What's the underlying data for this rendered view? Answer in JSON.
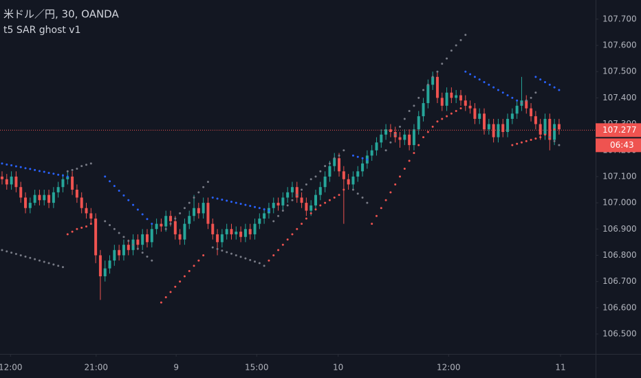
{
  "chart_data": {
    "type": "candlestick",
    "title": "米ドル／円, 30, OANDA",
    "subtitle": "t5 SAR ghost v1",
    "up_color": "#26a69a",
    "down_color": "#ef5350",
    "open": [
      107.1,
      107.09,
      107.07,
      107.1,
      107.06,
      107.02,
      106.98,
      107.0,
      107.03,
      107.01,
      107.03,
      107.0,
      107.04,
      107.06,
      107.09,
      107.1,
      107.05,
      107.02,
      106.98,
      106.96,
      106.94,
      106.8,
      106.72,
      106.75,
      106.78,
      106.82,
      106.8,
      106.84,
      106.82,
      106.86,
      106.84,
      106.88,
      106.85,
      106.9,
      106.92,
      106.91,
      106.95,
      106.93,
      106.88,
      106.86,
      106.92,
      106.95,
      106.98,
      106.96,
      107.0,
      106.92,
      106.88,
      106.85,
      106.88,
      106.9,
      106.88,
      106.89,
      106.87,
      106.9,
      106.88,
      106.92,
      106.94,
      106.96,
      106.98,
      107.0,
      106.99,
      107.02,
      107.04,
      107.06,
      107.02,
      107.0,
      106.97,
      106.99,
      107.03,
      107.06,
      107.1,
      107.14,
      107.17,
      107.12,
      107.09,
      107.07,
      107.1,
      107.12,
      107.15,
      107.18,
      107.2,
      107.23,
      107.26,
      107.28,
      107.27,
      107.25,
      107.24,
      107.26,
      107.22,
      107.28,
      107.33,
      107.38,
      107.45,
      107.48,
      107.4,
      107.37,
      107.42,
      107.4,
      107.41,
      107.39,
      107.37,
      107.36,
      107.32,
      107.34,
      107.28,
      107.3,
      107.25,
      107.3,
      107.27,
      107.32,
      107.34,
      107.37,
      107.39,
      107.36,
      107.33,
      107.3,
      107.26,
      107.32,
      107.24,
      107.3
    ],
    "high": [
      107.12,
      107.11,
      107.12,
      107.12,
      107.08,
      107.04,
      107.02,
      107.05,
      107.05,
      107.05,
      107.05,
      107.06,
      107.08,
      107.11,
      107.12,
      107.12,
      107.07,
      107.04,
      107.0,
      106.98,
      106.96,
      106.82,
      106.78,
      106.8,
      106.84,
      106.84,
      106.86,
      106.86,
      106.88,
      106.88,
      106.9,
      106.9,
      106.92,
      106.94,
      106.94,
      106.97,
      106.97,
      106.95,
      106.9,
      106.94,
      106.97,
      107.03,
      107.0,
      107.02,
      107.02,
      106.94,
      106.9,
      106.9,
      106.92,
      106.92,
      106.91,
      106.91,
      106.92,
      106.92,
      106.94,
      106.96,
      106.98,
      107.0,
      107.02,
      107.02,
      107.04,
      107.06,
      107.08,
      107.08,
      107.04,
      107.02,
      107.01,
      107.05,
      107.08,
      107.12,
      107.16,
      107.19,
      107.19,
      107.14,
      107.11,
      107.12,
      107.14,
      107.17,
      107.2,
      107.22,
      107.25,
      107.28,
      107.3,
      107.3,
      107.29,
      107.27,
      107.28,
      107.28,
      107.3,
      107.35,
      107.4,
      107.47,
      107.5,
      107.5,
      107.42,
      107.44,
      107.44,
      107.43,
      107.43,
      107.41,
      107.39,
      107.38,
      107.36,
      107.36,
      107.32,
      107.32,
      107.32,
      107.32,
      107.34,
      107.36,
      107.39,
      107.48,
      107.41,
      107.38,
      107.35,
      107.32,
      107.34,
      107.34,
      107.32,
      107.32
    ],
    "low": [
      107.07,
      107.05,
      107.05,
      107.04,
      107.0,
      106.96,
      106.96,
      106.99,
      106.99,
      106.99,
      106.98,
      106.98,
      107.02,
      107.04,
      107.07,
      107.03,
      107.0,
      106.96,
      106.94,
      106.92,
      106.77,
      106.63,
      106.7,
      106.73,
      106.76,
      106.78,
      106.78,
      106.8,
      106.8,
      106.82,
      106.82,
      106.83,
      106.83,
      106.88,
      106.89,
      106.89,
      106.91,
      106.86,
      106.84,
      106.84,
      106.9,
      106.93,
      106.94,
      106.94,
      106.9,
      106.86,
      106.8,
      106.83,
      106.86,
      106.86,
      106.86,
      106.85,
      106.85,
      106.86,
      106.86,
      106.9,
      106.92,
      106.94,
      106.96,
      106.97,
      106.97,
      107.0,
      107.02,
      107.0,
      106.98,
      106.95,
      106.95,
      106.97,
      107.01,
      107.04,
      107.08,
      107.12,
      107.1,
      106.92,
      107.05,
      107.05,
      107.08,
      107.1,
      107.13,
      107.16,
      107.18,
      107.21,
      107.24,
      107.25,
      107.23,
      107.21,
      107.22,
      107.2,
      107.2,
      107.26,
      107.31,
      107.36,
      107.43,
      107.38,
      107.35,
      107.35,
      107.38,
      107.38,
      107.37,
      107.35,
      107.34,
      107.3,
      107.3,
      107.26,
      107.26,
      107.23,
      107.23,
      107.25,
      107.25,
      107.3,
      107.32,
      107.35,
      107.34,
      107.31,
      107.28,
      107.24,
      107.24,
      107.2,
      107.22,
      107.26
    ],
    "close": [
      107.09,
      107.07,
      107.1,
      107.06,
      107.02,
      106.98,
      107.0,
      107.03,
      107.01,
      107.03,
      107.0,
      107.04,
      107.06,
      107.09,
      107.1,
      107.05,
      107.02,
      106.98,
      106.96,
      106.94,
      106.8,
      106.72,
      106.75,
      106.78,
      106.82,
      106.8,
      106.84,
      106.82,
      106.86,
      106.84,
      106.88,
      106.85,
      106.9,
      106.92,
      106.91,
      106.95,
      106.93,
      106.88,
      106.86,
      106.92,
      106.95,
      106.98,
      106.96,
      107.0,
      106.92,
      106.88,
      106.85,
      106.88,
      106.9,
      106.88,
      106.89,
      106.87,
      106.9,
      106.88,
      106.92,
      106.94,
      106.96,
      106.98,
      107.0,
      106.99,
      107.02,
      107.04,
      107.06,
      107.02,
      107.0,
      106.97,
      106.99,
      107.03,
      107.06,
      107.1,
      107.14,
      107.17,
      107.12,
      107.09,
      107.07,
      107.1,
      107.12,
      107.15,
      107.18,
      107.2,
      107.23,
      107.26,
      107.28,
      107.27,
      107.25,
      107.24,
      107.26,
      107.22,
      107.28,
      107.33,
      107.38,
      107.45,
      107.48,
      107.4,
      107.37,
      107.42,
      107.4,
      107.41,
      107.39,
      107.37,
      107.36,
      107.32,
      107.34,
      107.28,
      107.3,
      107.25,
      107.3,
      107.27,
      107.32,
      107.34,
      107.37,
      107.39,
      107.36,
      107.33,
      107.3,
      107.26,
      107.32,
      107.24,
      107.3,
      107.28
    ],
    "indicator_dots": [
      {
        "color": "#2962ff",
        "values": [
          107.15,
          107.146,
          107.143,
          107.139,
          107.136,
          107.132,
          107.129,
          107.125,
          107.121,
          107.118,
          107.114,
          107.111,
          107.107,
          107.104,
          107.1,
          null,
          null,
          null,
          null,
          null,
          null,
          null,
          107.1,
          107.082,
          107.064,
          107.046,
          107.028,
          107.01,
          106.992,
          106.974,
          106.956,
          106.938,
          106.92,
          null,
          null,
          null,
          null,
          null,
          null,
          null,
          null,
          null,
          null,
          null,
          null,
          107.02,
          107.016,
          107.012,
          107.008,
          107.004,
          107.0,
          106.996,
          106.992,
          106.988,
          106.984,
          106.98,
          106.975,
          106.97,
          null,
          null,
          null,
          null,
          null,
          null,
          null,
          null,
          null,
          null,
          null,
          null,
          null,
          null,
          null,
          null,
          null,
          107.18,
          107.175,
          107.17,
          107.165,
          null,
          null,
          null,
          null,
          null,
          null,
          null,
          null,
          null,
          null,
          null,
          null,
          null,
          null,
          null,
          null,
          null,
          null,
          null,
          null,
          107.5,
          107.49,
          107.48,
          107.47,
          107.46,
          107.45,
          107.44,
          107.43,
          107.42,
          107.41,
          107.4,
          107.39,
          107.38,
          null,
          null,
          107.48,
          107.47,
          107.46,
          107.45,
          107.44,
          107.43
        ]
      },
      {
        "color": "#ef5350",
        "values": [
          null,
          null,
          null,
          null,
          null,
          null,
          null,
          null,
          null,
          null,
          null,
          null,
          null,
          null,
          106.88,
          106.89,
          106.9,
          106.905,
          106.91,
          106.92,
          null,
          null,
          null,
          null,
          null,
          null,
          null,
          null,
          null,
          null,
          null,
          null,
          null,
          null,
          106.62,
          106.64,
          106.66,
          106.68,
          106.7,
          106.72,
          106.74,
          106.76,
          106.78,
          106.8,
          null,
          null,
          null,
          null,
          null,
          null,
          null,
          null,
          null,
          null,
          null,
          null,
          null,
          106.78,
          106.8,
          106.82,
          106.84,
          106.86,
          106.88,
          106.9,
          106.92,
          106.94,
          106.96,
          106.975,
          106.99,
          107.0,
          107.01,
          107.02,
          107.03,
          107.05,
          null,
          null,
          null,
          null,
          null,
          106.92,
          106.95,
          106.98,
          107.01,
          107.04,
          107.07,
          107.1,
          107.13,
          107.16,
          107.19,
          107.22,
          107.25,
          107.27,
          107.29,
          107.31,
          107.32,
          107.33,
          107.34,
          107.35,
          107.36,
          null,
          null,
          null,
          null,
          null,
          null,
          null,
          null,
          null,
          null,
          107.22,
          107.225,
          107.23,
          107.235,
          107.24,
          107.245,
          107.25,
          107.26,
          107.27,
          107.28,
          null
        ]
      },
      {
        "color": "#787b86",
        "values": [
          106.82,
          106.815,
          106.81,
          106.805,
          106.8,
          106.795,
          106.79,
          106.785,
          106.78,
          106.775,
          106.77,
          106.765,
          106.76,
          106.755,
          107.12,
          107.125,
          107.13,
          107.14,
          107.145,
          107.15,
          null,
          null,
          106.93,
          106.915,
          106.9,
          106.885,
          106.87,
          106.855,
          106.84,
          106.825,
          106.81,
          106.795,
          106.78,
          null,
          null,
          106.9,
          106.92,
          106.94,
          106.96,
          106.98,
          107.0,
          107.02,
          107.04,
          107.06,
          107.08,
          106.83,
          106.824,
          106.818,
          106.812,
          106.806,
          106.8,
          106.794,
          106.788,
          106.782,
          106.776,
          106.77,
          106.76,
          null,
          106.93,
          106.95,
          106.97,
          106.99,
          107.01,
          107.03,
          107.05,
          107.07,
          107.09,
          107.1,
          107.12,
          107.14,
          107.15,
          107.17,
          107.18,
          107.2,
          null,
          107.05,
          107.035,
          107.02,
          107.0,
          null,
          null,
          null,
          107.2,
          107.23,
          107.26,
          107.29,
          107.32,
          107.35,
          107.37,
          107.4,
          107.43,
          107.45,
          107.48,
          107.5,
          107.53,
          107.55,
          107.58,
          107.6,
          107.62,
          107.64,
          null,
          null,
          null,
          null,
          null,
          null,
          null,
          null,
          null,
          null,
          null,
          107.38,
          107.39,
          107.4,
          107.42,
          null,
          null,
          107.25,
          107.235,
          107.22
        ]
      }
    ],
    "last_price": {
      "value": 107.277,
      "label": "107.277"
    },
    "countdown": "06:43",
    "xlim": [
      -0.44,
      126.8
    ],
    "xticks": [
      {
        "value": 1.8,
        "label": "12:00"
      },
      {
        "value": 20.1,
        "label": "21:00"
      },
      {
        "value": 37.2,
        "label": "9"
      },
      {
        "value": 54.4,
        "label": "15:00"
      },
      {
        "value": 71.8,
        "label": "10"
      },
      {
        "value": 95.4,
        "label": "12:00"
      },
      {
        "value": 119.3,
        "label": "11"
      }
    ],
    "ylim": [
      106.424,
      107.773
    ],
    "yticks": [
      {
        "value": 106.5,
        "label": "106.500"
      },
      {
        "value": 106.6,
        "label": "106.600"
      },
      {
        "value": 106.7,
        "label": "106.700"
      },
      {
        "value": 106.8,
        "label": "106.800"
      },
      {
        "value": 106.9,
        "label": "106.900"
      },
      {
        "value": 107.0,
        "label": "107.000"
      },
      {
        "value": 107.1,
        "label": "107.100"
      },
      {
        "value": 107.2,
        "label": "107.200"
      },
      {
        "value": 107.3,
        "label": "107.300"
      },
      {
        "value": 107.4,
        "label": "107.400"
      },
      {
        "value": 107.5,
        "label": "107.500"
      },
      {
        "value": 107.6,
        "label": "107.600"
      },
      {
        "value": 107.7,
        "label": "107.700"
      }
    ]
  }
}
